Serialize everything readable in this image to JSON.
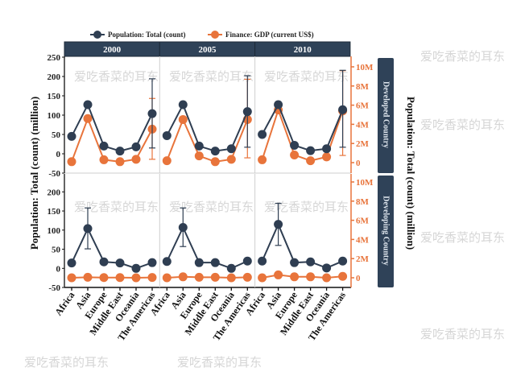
{
  "chart_data": {
    "type": "line",
    "legend": {
      "placement": "top",
      "entries": [
        "Population: Total (count)",
        "Finance: GDP (current US$)"
      ]
    },
    "ylabel_left": "Population: Total (count) (million)",
    "ylabel_right": "Population: Total (count) (million)",
    "columns": [
      "2000",
      "2005",
      "2010"
    ],
    "rows": [
      "Developed Country",
      "Developing Country"
    ],
    "categories": [
      "Africa",
      "Asia",
      "Europe",
      "Middle East",
      "Oceania",
      "The Americas"
    ],
    "left_axis": {
      "top_ticks": [
        -50,
        0,
        50,
        100,
        150,
        200,
        250
      ],
      "bottom_ticks": [
        -50,
        0,
        50,
        100,
        150,
        200
      ],
      "range": [
        -50,
        260
      ]
    },
    "right_axis": {
      "ticks": [
        "0",
        "2M",
        "4M",
        "6M",
        "8M",
        "10M"
      ],
      "tick_values": [
        0,
        2,
        4,
        6,
        8,
        10
      ],
      "unit": "M"
    },
    "colors": {
      "population": "#2f3e52",
      "gdp": "#e8743b",
      "strip": "#2f4258",
      "right_axis": "#e8743b"
    },
    "panels": [
      {
        "row": "Developed Country",
        "column": "2000",
        "population": [
          45,
          127,
          20,
          7,
          18,
          104
        ],
        "population_err": [
          null,
          null,
          null,
          null,
          null,
          [
            15,
            194
          ]
        ],
        "gdp": [
          0.1,
          4.6,
          0.3,
          0.1,
          0.35,
          3.5
        ],
        "gdp_err": [
          null,
          null,
          null,
          null,
          null,
          [
            0.35,
            6.7
          ]
        ]
      },
      {
        "row": "Developed Country",
        "column": "2005",
        "population": [
          47,
          127,
          20,
          7,
          13,
          109
        ],
        "population_err": [
          null,
          null,
          null,
          null,
          null,
          [
            17,
            202
          ]
        ],
        "gdp": [
          0.2,
          4.5,
          0.7,
          0.1,
          0.35,
          4.5
        ],
        "gdp_err": [
          null,
          null,
          null,
          null,
          null,
          [
            0.5,
            8.7
          ]
        ]
      },
      {
        "row": "Developed Country",
        "column": "2010",
        "population": [
          50,
          127,
          22,
          8,
          13,
          114
        ],
        "population_err": [
          null,
          null,
          null,
          null,
          null,
          [
            17,
            216
          ]
        ],
        "gdp": [
          0.3,
          5.5,
          0.8,
          0.2,
          0.6,
          5.4
        ],
        "gdp_err": [
          null,
          null,
          null,
          null,
          [
            0.3,
            0.9
          ],
          [
            0.75,
            9.6
          ]
        ]
      },
      {
        "row": "Developing Country",
        "column": "2000",
        "population": [
          14,
          104,
          17,
          14,
          0,
          15
        ],
        "population_err": [
          null,
          [
            51,
            158
          ],
          null,
          null,
          null,
          null
        ],
        "gdp": [
          0,
          0.05,
          0.02,
          0.02,
          0,
          0.03
        ],
        "gdp_err": [
          null,
          null,
          null,
          null,
          null,
          null
        ]
      },
      {
        "row": "Developing Country",
        "column": "2005",
        "population": [
          18,
          107,
          15,
          15,
          0,
          19
        ],
        "population_err": [
          null,
          [
            57,
            158
          ],
          null,
          null,
          null,
          null
        ],
        "gdp": [
          0,
          0.1,
          0.05,
          0.05,
          0,
          0.05
        ],
        "gdp_err": [
          null,
          null,
          null,
          null,
          null,
          null
        ]
      },
      {
        "row": "Developing Country",
        "column": "2010",
        "population": [
          19,
          115,
          15,
          17,
          1,
          19
        ],
        "population_err": [
          null,
          [
            60,
            170
          ],
          null,
          null,
          null,
          null
        ],
        "gdp": [
          0,
          0.3,
          0.1,
          0.1,
          0,
          0.15
        ],
        "gdp_err": [
          null,
          null,
          null,
          null,
          null,
          null
        ]
      }
    ]
  },
  "watermark": "爱吃香菜的耳东"
}
